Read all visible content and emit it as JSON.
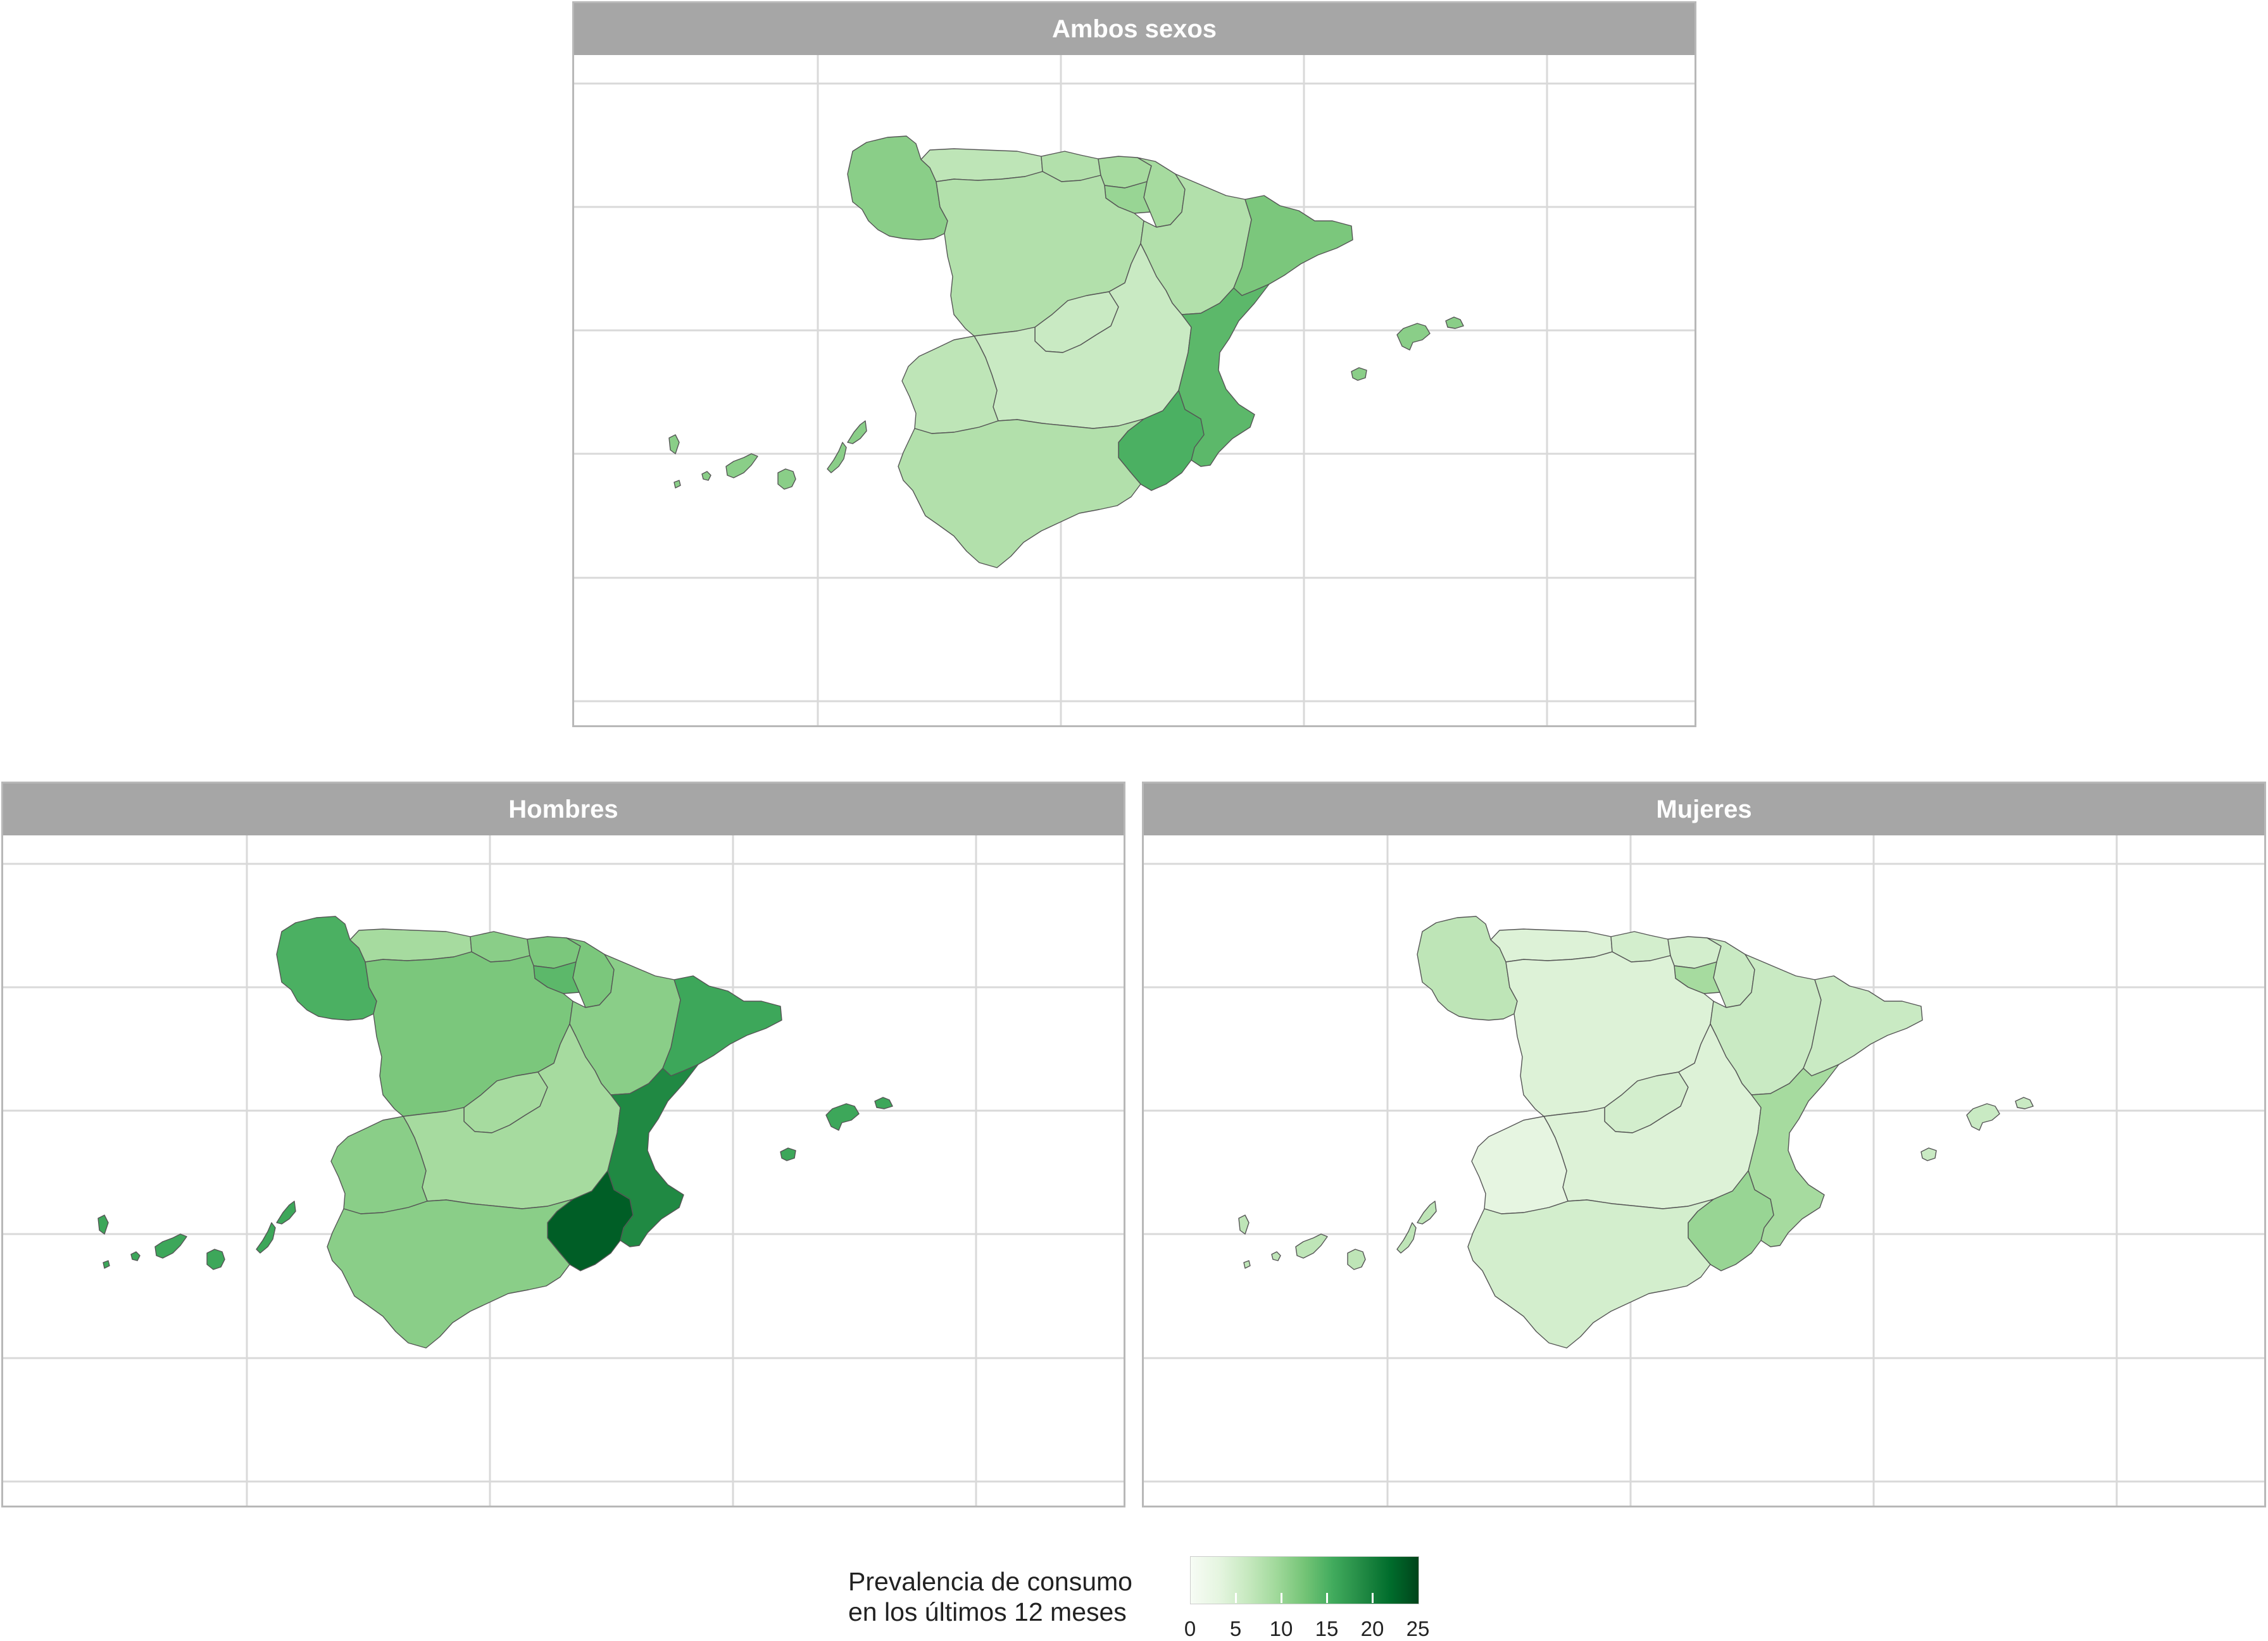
{
  "colors": {
    "background": "#ffffff",
    "strip": "#a6a6a6",
    "grid": "#d9d9d9",
    "scale_low": "#f7fcf5",
    "scale_high": "#00441b"
  },
  "scale": {
    "min": 0,
    "max": 25
  },
  "panels": [
    {
      "title": "Ambos sexos",
      "values": {
        "galicia": 11,
        "asturias": 7,
        "cantabria": 8,
        "pais_vasco": 9,
        "navarra": 9,
        "la_rioja": 10,
        "castilla_leon": 8,
        "aragon": 8,
        "cataluna": 12,
        "madrid": 6,
        "castilla_mancha": 6,
        "extremadura": 7,
        "valencia": 14,
        "murcia": 15,
        "andalucia": 8,
        "baleares": 11,
        "canarias": 11
      }
    },
    {
      "title": "Hombres",
      "values": {
        "galicia": 15,
        "asturias": 9,
        "cantabria": 11,
        "pais_vasco": 12,
        "navarra": 12,
        "la_rioja": 14,
        "castilla_leon": 12,
        "aragon": 11,
        "cataluna": 16,
        "madrid": 9,
        "castilla_mancha": 9,
        "extremadura": 11,
        "valencia": 19,
        "murcia": 23,
        "andalucia": 11,
        "baleares": 16,
        "canarias": 16
      }
    },
    {
      "title": "Mujeres",
      "values": {
        "galicia": 7,
        "asturias": 4,
        "cantabria": 5,
        "pais_vasco": 5,
        "navarra": 6,
        "la_rioja": 9,
        "castilla_leon": 4,
        "aragon": 6,
        "cataluna": 6,
        "madrid": 5,
        "castilla_mancha": 4,
        "extremadura": 3,
        "valencia": 9,
        "murcia": 10,
        "andalucia": 5,
        "baleares": 6,
        "canarias": 7
      }
    }
  ],
  "legend": {
    "title_line1": "Prevalencia de consumo",
    "title_line2": "en los últimos 12 meses",
    "ticks": [
      "0",
      "5",
      "10",
      "15",
      "20",
      "25"
    ]
  }
}
